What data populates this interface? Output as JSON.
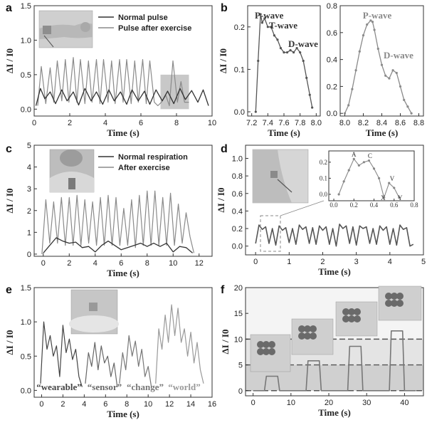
{
  "panels": {
    "a": {
      "letter": "a"
    },
    "b": {
      "letter": "b"
    },
    "c": {
      "letter": "c"
    },
    "d": {
      "letter": "d"
    },
    "e": {
      "letter": "e"
    },
    "f": {
      "letter": "f"
    }
  },
  "colors": {
    "dark": "#333333",
    "light": "#8a8a8a",
    "mid": "#555555",
    "highlight": "#c8c8c8"
  },
  "chart_data": [
    {
      "id": "a",
      "type": "line",
      "xlabel": "Time (s)",
      "ylabel": "ΔI / I0",
      "xlim": [
        0,
        10
      ],
      "ylim": [
        -0.1,
        1.5
      ],
      "xticks": [
        "0",
        "2",
        "4",
        "6",
        "8",
        "10"
      ],
      "yticks": [
        "0.0",
        "0.5",
        "1.0",
        "1.5"
      ],
      "legend": [
        "Normal pulse",
        "Pulse after exercise"
      ],
      "series": [
        {
          "name": "Normal pulse",
          "x": [
            0.1,
            0.35,
            0.6,
            0.9,
            1.2,
            1.55,
            1.85,
            2.2,
            2.5,
            2.85,
            3.2,
            3.5,
            3.85,
            4.2,
            4.5,
            4.85,
            5.2,
            5.5,
            5.85,
            6.2,
            6.5,
            6.85,
            7.2,
            7.5,
            7.85,
            8.2,
            8.5,
            8.85,
            9.2,
            9.5,
            9.8
          ],
          "y": [
            0.05,
            0.3,
            0.15,
            0.25,
            0.08,
            0.28,
            0.12,
            0.25,
            0.06,
            0.3,
            0.12,
            0.25,
            0.07,
            0.28,
            0.12,
            0.25,
            0.07,
            0.28,
            0.12,
            0.26,
            0.07,
            0.28,
            0.12,
            0.26,
            0.08,
            0.3,
            0.14,
            0.27,
            0.1,
            0.28,
            0.05
          ]
        },
        {
          "name": "Pulse after exercise",
          "x": [
            0.2,
            0.4,
            0.65,
            0.9,
            1.1,
            1.3,
            1.55,
            1.75,
            1.95,
            2.2,
            2.4,
            2.6,
            2.85,
            3.05,
            3.25,
            3.5,
            3.7,
            3.9,
            4.15,
            4.35,
            4.55,
            4.8,
            5.0,
            5.2,
            5.45,
            5.65,
            5.85,
            6.1,
            6.3,
            6.5,
            6.75,
            6.95,
            7.15,
            7.4,
            7.6,
            7.8,
            8.05,
            8.25,
            8.45,
            8.7
          ],
          "y": [
            0.05,
            0.62,
            0.08,
            0.6,
            0.1,
            0.7,
            0.12,
            0.72,
            0.1,
            0.75,
            0.1,
            0.72,
            0.08,
            0.7,
            0.1,
            0.72,
            0.08,
            0.72,
            0.1,
            0.7,
            0.08,
            0.72,
            0.1,
            0.72,
            0.08,
            0.7,
            0.1,
            0.72,
            0.08,
            0.7,
            0.1,
            0.05,
            0.1,
            0.2,
            0.05,
            0.7,
            0.1,
            0.4,
            0.1,
            0.1
          ]
        }
      ],
      "highlight_ranges": [
        [
          7.1,
          7.9
        ],
        [
          7.9,
          8.7
        ]
      ]
    },
    {
      "id": "b1",
      "type": "line",
      "xlabel": "Time (s)",
      "ylabel": "ΔI / I0",
      "xlim": [
        7.15,
        8.05
      ],
      "ylim": [
        -0.01,
        0.25
      ],
      "xticks": [
        "7.2",
        "7.4",
        "7.6",
        "7.8",
        "8.0"
      ],
      "yticks": [
        "0.0",
        "0.1",
        "0.2"
      ],
      "annotations": [
        "P-wave",
        "T-wave",
        "D-wave"
      ],
      "series": [
        {
          "x": [
            7.25,
            7.28,
            7.31,
            7.33,
            7.36,
            7.4,
            7.44,
            7.48,
            7.52,
            7.56,
            7.6,
            7.64,
            7.68,
            7.72,
            7.76,
            7.8,
            7.84,
            7.88,
            7.92,
            7.95
          ],
          "y": [
            0.0,
            0.12,
            0.23,
            0.21,
            0.22,
            0.2,
            0.2,
            0.18,
            0.17,
            0.15,
            0.14,
            0.14,
            0.145,
            0.14,
            0.15,
            0.14,
            0.12,
            0.08,
            0.04,
            0.01
          ]
        }
      ]
    },
    {
      "id": "b2",
      "type": "line",
      "xlabel": "Time (s)",
      "ylabel": "",
      "xlim": [
        7.95,
        8.85
      ],
      "ylim": [
        -0.02,
        0.8
      ],
      "xticks": [
        "8.0",
        "8.2",
        "8.4",
        "8.6",
        "8.8"
      ],
      "yticks": [
        "0.0",
        "0.2",
        "0.4",
        "0.6",
        "0.8"
      ],
      "annotations": [
        "P-wave",
        "D-wave"
      ],
      "series": [
        {
          "x": [
            8.0,
            8.04,
            8.08,
            8.12,
            8.16,
            8.2,
            8.24,
            8.28,
            8.3,
            8.32,
            8.36,
            8.4,
            8.44,
            8.48,
            8.52,
            8.56,
            8.6,
            8.64,
            8.68,
            8.72
          ],
          "y": [
            0.0,
            0.06,
            0.18,
            0.32,
            0.46,
            0.58,
            0.66,
            0.69,
            0.68,
            0.62,
            0.48,
            0.36,
            0.28,
            0.26,
            0.32,
            0.3,
            0.2,
            0.1,
            0.05,
            0.0
          ]
        }
      ]
    },
    {
      "id": "c",
      "type": "line",
      "xlabel": "Time (s)",
      "ylabel": "ΔI / I0",
      "xlim": [
        -0.7,
        13
      ],
      "ylim": [
        -0.1,
        5
      ],
      "xticks": [
        "0",
        "2",
        "4",
        "6",
        "8",
        "10",
        "12"
      ],
      "yticks": [
        "0",
        "1",
        "2",
        "3",
        "4",
        "5"
      ],
      "legend": [
        "Normal respiration",
        "After exercise"
      ],
      "series": [
        {
          "name": "Normal respiration",
          "x": [
            0,
            0.5,
            1,
            1.5,
            2,
            2.5,
            3,
            3.5,
            4,
            4.5,
            5,
            5.5,
            6,
            6.5,
            7,
            7.5,
            8,
            8.5,
            9,
            9.5,
            10,
            10.5,
            11,
            11.5
          ],
          "y": [
            0.05,
            0.4,
            0.75,
            0.6,
            0.5,
            0.55,
            0.3,
            0.35,
            0.1,
            0.4,
            0.6,
            0.4,
            0.2,
            0.3,
            0.4,
            0.5,
            0.35,
            0.5,
            0.35,
            0.5,
            0.1,
            0.35,
            0.3,
            0.05
          ]
        },
        {
          "name": "After exercise",
          "x": [
            -0.1,
            0.2,
            0.5,
            0.8,
            1.1,
            1.4,
            1.7,
            2.0,
            2.3,
            2.6,
            2.9,
            3.2,
            3.5,
            3.8,
            4.1,
            4.4,
            4.7,
            5.0,
            5.3,
            5.6,
            5.9,
            6.2,
            6.5,
            6.8,
            7.1,
            7.4,
            7.7,
            8.0,
            8.3,
            8.6,
            8.9,
            9.2,
            9.5,
            9.8,
            10.1,
            10.4,
            10.7,
            11.0,
            11.3,
            11.6
          ],
          "y": [
            0.0,
            2.5,
            0.5,
            2.4,
            0.5,
            2.6,
            0.4,
            2.6,
            0.4,
            2.7,
            0.4,
            2.5,
            0.5,
            2.4,
            0.4,
            2.6,
            0.4,
            2.7,
            0.4,
            2.6,
            0.4,
            2.1,
            0.4,
            2.5,
            0.3,
            2.7,
            0.4,
            2.9,
            0.4,
            2.9,
            0.4,
            2.6,
            0.4,
            2.8,
            0.4,
            2.3,
            0.5,
            1.9,
            0.8,
            0.05
          ]
        }
      ]
    },
    {
      "id": "d",
      "type": "line",
      "xlabel": "Time (s)",
      "ylabel": "ΔI / I0",
      "xlim": [
        -0.3,
        5
      ],
      "ylim": [
        -0.1,
        1.15
      ],
      "xticks": [
        "0",
        "1",
        "2",
        "3",
        "4",
        "5"
      ],
      "yticks": [
        "0.0",
        "0.2",
        "0.4",
        "0.6",
        "0.8",
        "1.0"
      ],
      "series": [
        {
          "x": [
            0.0,
            0.1,
            0.2,
            0.3,
            0.4,
            0.5,
            0.6,
            0.7,
            0.8,
            0.9,
            1.0,
            1.1,
            1.2,
            1.3,
            1.4,
            1.5,
            1.6,
            1.7,
            1.8,
            1.9,
            2.0,
            2.1,
            2.2,
            2.3,
            2.4,
            2.5,
            2.6,
            2.7,
            2.8,
            2.9,
            3.0,
            3.1,
            3.2,
            3.3,
            3.4,
            3.5,
            3.6,
            3.7,
            3.8,
            3.9,
            4.0,
            4.1,
            4.2,
            4.3,
            4.4,
            4.5,
            4.6,
            4.7
          ],
          "y": [
            0.03,
            0.24,
            0.19,
            0.22,
            0.03,
            0.2,
            0.01,
            0.23,
            0.18,
            0.21,
            0.04,
            0.2,
            0.02,
            0.24,
            0.19,
            0.22,
            0.03,
            0.21,
            0.02,
            0.23,
            0.18,
            0.22,
            0.02,
            0.2,
            0.0,
            0.25,
            0.2,
            0.23,
            0.03,
            0.22,
            0.01,
            0.23,
            0.2,
            0.22,
            0.03,
            0.2,
            0.02,
            0.23,
            0.18,
            0.22,
            0.02,
            0.2,
            0.01,
            0.24,
            0.19,
            0.21,
            0.0,
            0.02
          ]
        }
      ],
      "inset": {
        "xticks": [
          "0.0",
          "0.2",
          "0.4",
          "0.6",
          "0.8"
        ],
        "yticks": [
          "0.0",
          "0.1",
          "0.2"
        ],
        "labels": [
          "A",
          "C",
          "X",
          "V",
          "Y"
        ],
        "xlim": [
          -0.05,
          0.8
        ],
        "ylim": [
          -0.04,
          0.27
        ],
        "x": [
          0.05,
          0.1,
          0.15,
          0.2,
          0.25,
          0.3,
          0.35,
          0.4,
          0.45,
          0.5,
          0.55,
          0.6,
          0.65
        ],
        "y": [
          0.0,
          0.08,
          0.15,
          0.22,
          0.18,
          0.2,
          0.21,
          0.16,
          0.1,
          -0.02,
          0.07,
          0.04,
          -0.02
        ]
      }
    },
    {
      "id": "e",
      "type": "line",
      "xlabel": "Time (s)",
      "ylabel": "ΔI / I0",
      "xlim": [
        -0.7,
        16
      ],
      "ylim": [
        -0.1,
        1.5
      ],
      "xticks": [
        "0",
        "2",
        "4",
        "6",
        "8",
        "10",
        "12",
        "14",
        "16"
      ],
      "yticks": [
        "0.0",
        "0.5",
        "1.0",
        "1.5"
      ],
      "words": [
        "“wearable”",
        "“sensor”",
        "“change”",
        "“world”"
      ],
      "series": [
        {
          "name": "wearable",
          "x": [
            -0.1,
            0.2,
            0.5,
            0.8,
            1.1,
            1.4,
            1.7,
            2.0,
            2.3,
            2.6,
            2.9,
            3.2,
            3.5,
            3.8
          ],
          "y": [
            0.1,
            1.0,
            0.6,
            0.8,
            0.5,
            0.65,
            0.2,
            0.95,
            0.55,
            0.75,
            0.45,
            0.6,
            0.2,
            0.05
          ]
        },
        {
          "name": "sensor",
          "x": [
            4.1,
            4.4,
            4.7,
            5.0,
            5.3,
            5.6,
            5.9,
            6.2,
            6.5,
            6.8,
            7.1
          ],
          "y": [
            0.1,
            0.55,
            0.35,
            0.7,
            0.3,
            0.65,
            0.4,
            0.5,
            0.2,
            0.4,
            0.05
          ]
        },
        {
          "name": "change",
          "x": [
            7.3,
            7.6,
            7.9,
            8.2,
            8.5,
            8.8,
            9.1,
            9.4,
            9.7,
            10.0,
            10.3
          ],
          "y": [
            0.1,
            0.55,
            0.3,
            0.8,
            0.5,
            0.72,
            0.35,
            0.6,
            0.2,
            0.35,
            0.05
          ]
        },
        {
          "name": "world",
          "x": [
            10.7,
            11.0,
            11.3,
            11.6,
            11.9,
            12.2,
            12.5,
            12.8,
            13.1,
            13.4,
            13.7,
            14.0,
            14.3,
            14.6,
            14.9,
            15.2
          ],
          "y": [
            0.1,
            0.9,
            0.6,
            1.1,
            0.7,
            1.25,
            0.8,
            1.2,
            0.7,
            0.9,
            0.5,
            0.85,
            0.4,
            0.7,
            0.3,
            0.1
          ]
        }
      ]
    },
    {
      "id": "f",
      "type": "line",
      "xlabel": "Time (s)",
      "ylabel": "ΔI / I0",
      "xlim": [
        -2,
        45
      ],
      "ylim": [
        -1,
        20
      ],
      "xticks": [
        "0",
        "10",
        "20",
        "30",
        "40"
      ],
      "yticks": [
        "0",
        "5",
        "10",
        "15",
        "20"
      ],
      "levels": [
        0,
        5,
        10
      ],
      "series": [
        {
          "x": [
            0,
            3,
            3.5,
            6.5,
            7,
            14,
            14.5,
            17.5,
            18,
            25,
            25.5,
            28.5,
            29,
            36,
            36.5,
            39.5,
            40,
            43
          ],
          "y": [
            0,
            0,
            2.8,
            2.8,
            0,
            0,
            5.8,
            5.8,
            0,
            0,
            8.6,
            8.6,
            0,
            0,
            11.6,
            11.6,
            0,
            0
          ]
        }
      ]
    }
  ]
}
